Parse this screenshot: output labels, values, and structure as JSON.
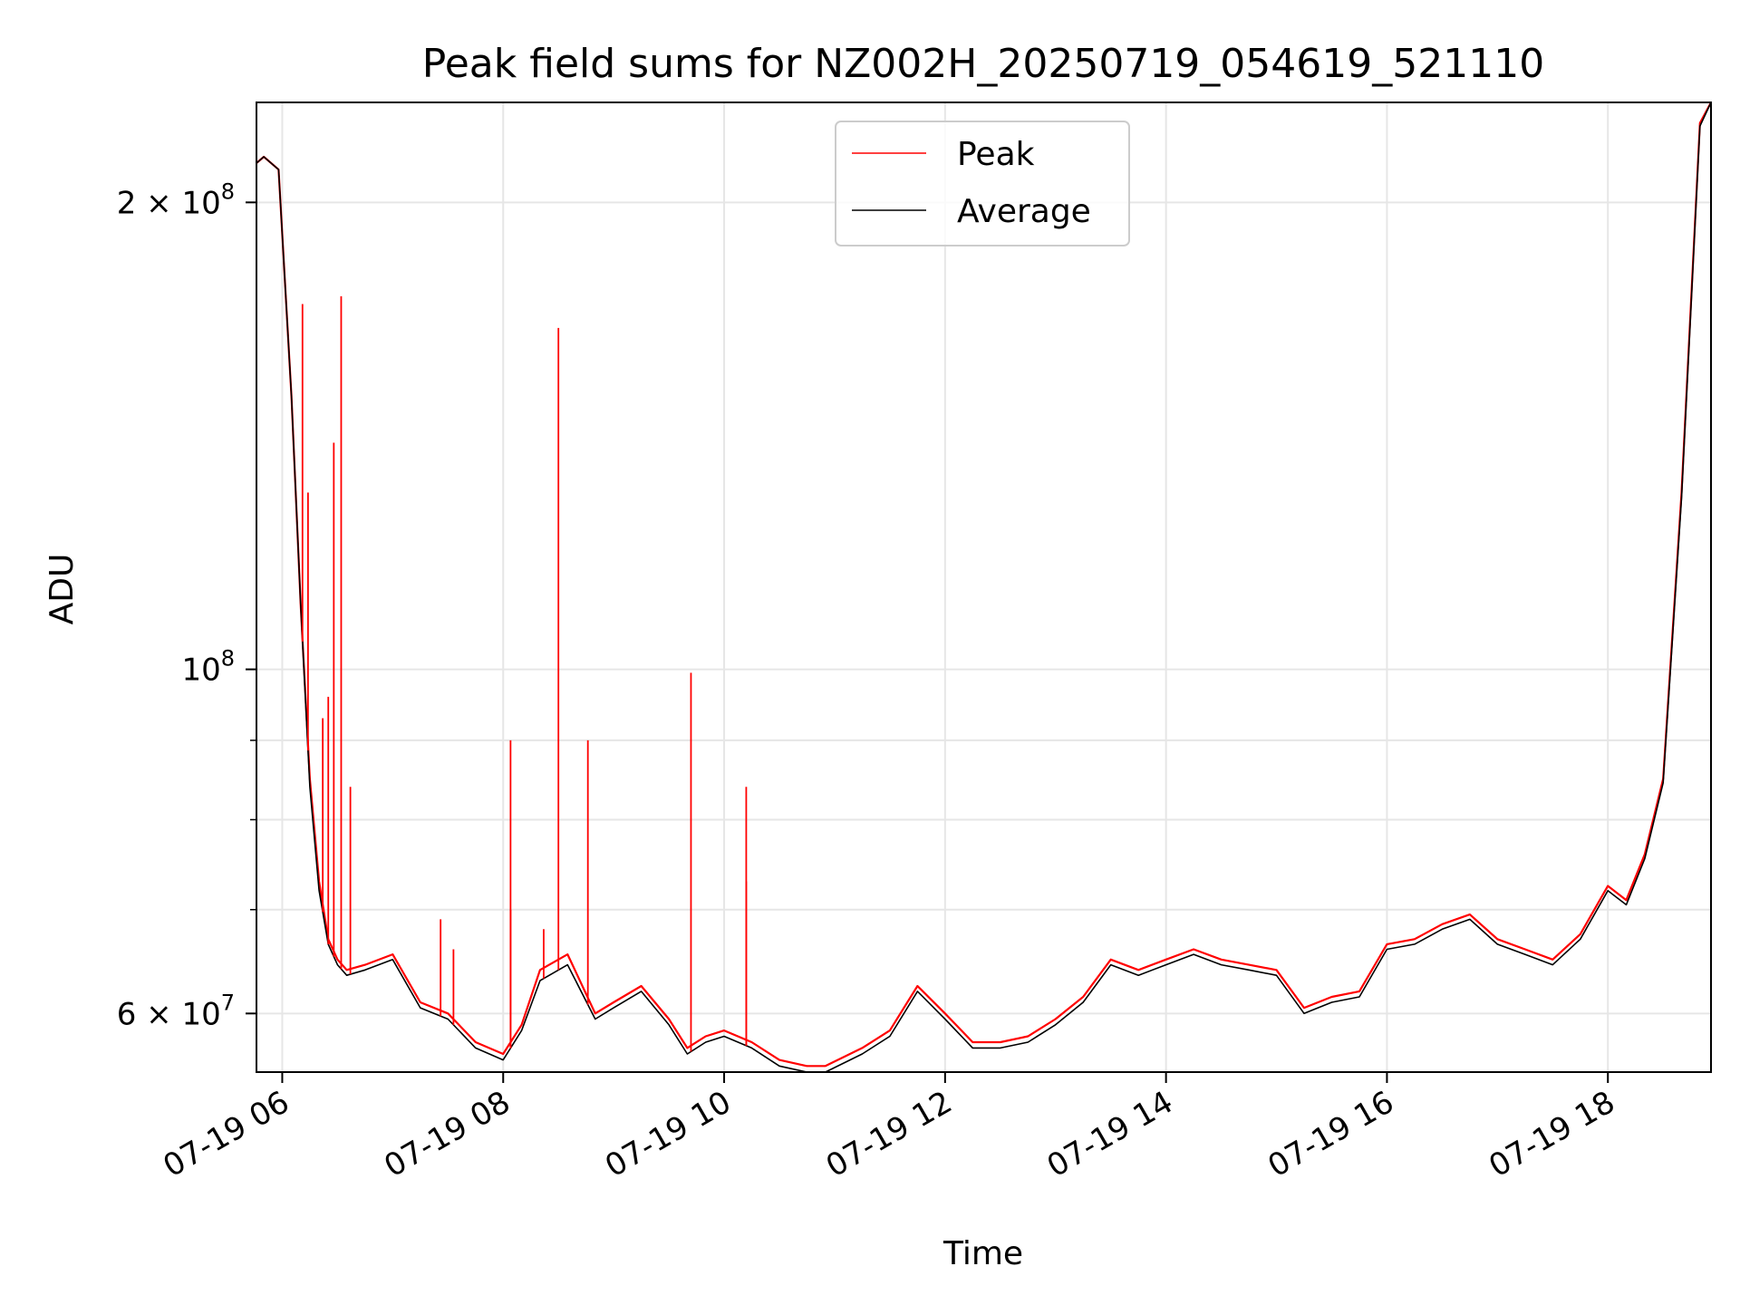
{
  "chart_data": {
    "type": "line",
    "title": "Peak field sums for NZ002H_20250719_054619_521110",
    "xlabel": "Time",
    "ylabel": "ADU",
    "yscale": "log",
    "xlim": [
      "07-19 05:46",
      "07-19 18:56"
    ],
    "ylim": [
      55000000,
      232000000
    ],
    "grid": true,
    "legend_position": "top-center",
    "x_ticks": [
      "07-19 06",
      "07-19 08",
      "07-19 10",
      "07-19 12",
      "07-19 14",
      "07-19 16",
      "07-19 18"
    ],
    "y_ticks": [
      {
        "value": 60000000,
        "mantissa": "6",
        "exp": "7"
      },
      {
        "value": 100000000,
        "mantissa": "",
        "exp": "8"
      },
      {
        "value": 200000000,
        "mantissa": "2",
        "exp": "8"
      }
    ],
    "series": [
      {
        "name": "Peak",
        "color": "#ff0000",
        "x": [
          "05:46",
          "05:50",
          "05:58",
          "06:05",
          "06:10",
          "06:15",
          "06:20",
          "06:25",
          "06:30",
          "06:35",
          "06:45",
          "07:00",
          "07:15",
          "07:30",
          "07:45",
          "08:00",
          "08:10",
          "08:20",
          "08:35",
          "08:50",
          "09:00",
          "09:15",
          "09:30",
          "09:40",
          "09:50",
          "10:00",
          "10:15",
          "10:30",
          "10:45",
          "10:55",
          "11:15",
          "11:30",
          "11:45",
          "12:00",
          "12:15",
          "12:30",
          "12:45",
          "13:00",
          "13:15",
          "13:30",
          "13:45",
          "14:00",
          "14:15",
          "14:30",
          "14:45",
          "15:00",
          "15:15",
          "15:30",
          "15:45",
          "16:00",
          "16:15",
          "16:30",
          "16:45",
          "17:00",
          "17:15",
          "17:30",
          "17:45",
          "18:00",
          "18:10",
          "18:20",
          "18:30",
          "18:40",
          "18:50",
          "18:56"
        ],
        "values": [
          212000000,
          214000000,
          210000000,
          150000000,
          110000000,
          85000000,
          73000000,
          67000000,
          65000000,
          64000000,
          64500000,
          65500000,
          61000000,
          60000000,
          57500000,
          56500000,
          59000000,
          64000000,
          65500000,
          60000000,
          61000000,
          62500000,
          59500000,
          57000000,
          58000000,
          58500000,
          57500000,
          56000000,
          55500000,
          55500000,
          57000000,
          58500000,
          62500000,
          60000000,
          57500000,
          57500000,
          58000000,
          59500000,
          61500000,
          65000000,
          64000000,
          65000000,
          66000000,
          65000000,
          64500000,
          64000000,
          60500000,
          61500000,
          62000000,
          66500000,
          67000000,
          68500000,
          69500000,
          67000000,
          66000000,
          65000000,
          67500000,
          72500000,
          71000000,
          76000000,
          85000000,
          130000000,
          225000000,
          232000000
        ]
      },
      {
        "name": "Average",
        "color": "#000000",
        "x": [
          "05:46",
          "05:50",
          "05:58",
          "06:05",
          "06:10",
          "06:15",
          "06:20",
          "06:25",
          "06:30",
          "06:35",
          "06:45",
          "07:00",
          "07:15",
          "07:30",
          "07:45",
          "08:00",
          "08:10",
          "08:20",
          "08:35",
          "08:50",
          "09:00",
          "09:15",
          "09:30",
          "09:40",
          "09:50",
          "10:00",
          "10:15",
          "10:30",
          "10:45",
          "10:55",
          "11:15",
          "11:30",
          "11:45",
          "12:00",
          "12:15",
          "12:30",
          "12:45",
          "13:00",
          "13:15",
          "13:30",
          "13:45",
          "14:00",
          "14:15",
          "14:30",
          "14:45",
          "15:00",
          "15:15",
          "15:30",
          "15:45",
          "16:00",
          "16:15",
          "16:30",
          "16:45",
          "17:00",
          "17:15",
          "17:30",
          "17:45",
          "18:00",
          "18:10",
          "18:20",
          "18:30",
          "18:40",
          "18:50",
          "18:56"
        ],
        "values": [
          212000000,
          214000000,
          210000000,
          150000000,
          110000000,
          84000000,
          72000000,
          66500000,
          64500000,
          63500000,
          64000000,
          65000000,
          60500000,
          59500000,
          57000000,
          56000000,
          58500000,
          63000000,
          64500000,
          59500000,
          60500000,
          62000000,
          59000000,
          56500000,
          57500000,
          58000000,
          57000000,
          55500000,
          55000000,
          55000000,
          56500000,
          58000000,
          62000000,
          59500000,
          57000000,
          57000000,
          57500000,
          59000000,
          61000000,
          64500000,
          63500000,
          64500000,
          65500000,
          64500000,
          64000000,
          63500000,
          60000000,
          61000000,
          61500000,
          66000000,
          66500000,
          68000000,
          69000000,
          66500000,
          65500000,
          64500000,
          67000000,
          72000000,
          70500000,
          75500000,
          84500000,
          129000000,
          224000000,
          232000000
        ]
      }
    ],
    "spikes": [
      {
        "x": "06:11",
        "value": 172000000
      },
      {
        "x": "06:14",
        "value": 130000000
      },
      {
        "x": "06:22",
        "value": 93000000
      },
      {
        "x": "06:25",
        "value": 96000000
      },
      {
        "x": "06:28",
        "value": 140000000
      },
      {
        "x": "06:32",
        "value": 174000000
      },
      {
        "x": "06:37",
        "value": 84000000
      },
      {
        "x": "07:26",
        "value": 69000000
      },
      {
        "x": "07:33",
        "value": 66000000
      },
      {
        "x": "08:04",
        "value": 90000000
      },
      {
        "x": "08:04",
        "value": 70000000
      },
      {
        "x": "08:22",
        "value": 68000000
      },
      {
        "x": "08:30",
        "value": 166000000
      },
      {
        "x": "08:46",
        "value": 90000000
      },
      {
        "x": "09:42",
        "value": 99500000
      },
      {
        "x": "10:12",
        "value": 84000000
      },
      {
        "x": "10:12",
        "value": 73000000
      }
    ]
  }
}
